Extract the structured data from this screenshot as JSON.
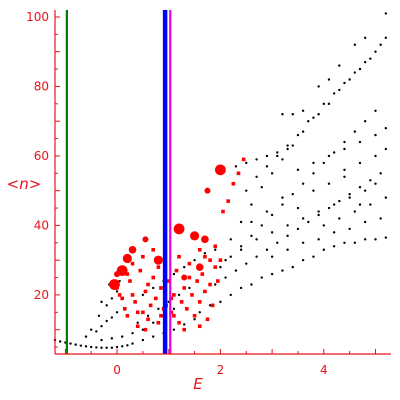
{
  "chart_data": {
    "type": "scatter",
    "xlabel": "E",
    "ylabel": "<n>",
    "xlim": [
      -1.2,
      5.3
    ],
    "ylim": [
      3,
      102
    ],
    "xticks": [
      0,
      2,
      4
    ],
    "yticks": [
      20,
      40,
      60,
      80,
      100
    ],
    "grid": false,
    "colors": {
      "axis": "#e8141c",
      "labels": "#e8141c",
      "black_points": "#000000",
      "red_points": "#ff0000",
      "vline_green": "#007a00",
      "vline_blue": "#0000ff",
      "vline_magenta": "#e000e0"
    },
    "vertical_lines": [
      {
        "color": "green",
        "x": -0.97
      },
      {
        "color": "blue",
        "x": 0.93
      },
      {
        "color": "magenta",
        "x": 1.03
      }
    ],
    "series": [
      {
        "marker": "dot",
        "color": "black",
        "points": [
          [
            -1.2,
            7.0
          ],
          [
            -1.1,
            6.6
          ],
          [
            -1.0,
            6.3
          ],
          [
            -0.9,
            6.0
          ],
          [
            -0.8,
            5.7
          ],
          [
            -0.7,
            5.4
          ],
          [
            -0.6,
            5.2
          ],
          [
            -0.5,
            5.0
          ],
          [
            -0.4,
            4.9
          ],
          [
            -0.3,
            4.8
          ],
          [
            -0.2,
            4.8
          ],
          [
            -0.1,
            4.8
          ],
          [
            0.0,
            5.0
          ],
          [
            0.1,
            5.2
          ],
          [
            0.2,
            5.5
          ],
          [
            -0.6,
            8.0
          ],
          [
            -0.4,
            9.5
          ],
          [
            -0.3,
            11.0
          ],
          [
            -0.2,
            12.5
          ],
          [
            -0.1,
            13.5
          ],
          [
            0.0,
            15.0
          ],
          [
            -0.5,
            10.0
          ],
          [
            -0.35,
            14.0
          ],
          [
            -0.2,
            17.0
          ],
          [
            -0.1,
            19.0
          ],
          [
            0.0,
            21.0
          ],
          [
            -0.3,
            18.0
          ],
          [
            0.05,
            24.0
          ],
          [
            0.15,
            26.0
          ],
          [
            -0.15,
            23.0
          ],
          [
            -0.3,
            7.0
          ],
          [
            -0.1,
            7.5
          ],
          [
            0.1,
            8.0
          ],
          [
            0.3,
            9.0
          ],
          [
            0.5,
            10.0
          ],
          [
            0.7,
            12.0
          ],
          [
            0.9,
            14.0
          ],
          [
            1.1,
            16.0
          ],
          [
            0.3,
            6.0
          ],
          [
            0.5,
            7.0
          ],
          [
            0.7,
            8.0
          ],
          [
            0.9,
            9.0
          ],
          [
            1.1,
            10.0
          ],
          [
            1.3,
            11.5
          ],
          [
            1.5,
            13.0
          ],
          [
            0.4,
            12.0
          ],
          [
            0.6,
            14.0
          ],
          [
            0.8,
            16.0
          ],
          [
            1.0,
            18.0
          ],
          [
            1.2,
            20.0
          ],
          [
            1.4,
            22.0
          ],
          [
            0.5,
            20.0
          ],
          [
            0.7,
            22.0
          ],
          [
            0.9,
            24.0
          ],
          [
            1.1,
            26.0
          ],
          [
            1.3,
            28.0
          ],
          [
            1.5,
            30.0
          ],
          [
            1.7,
            32.0
          ],
          [
            1.9,
            33.0
          ],
          [
            1.6,
            15.0
          ],
          [
            1.8,
            17.0
          ],
          [
            2.0,
            18.0
          ],
          [
            2.2,
            20.0
          ],
          [
            2.4,
            22.0
          ],
          [
            2.6,
            23.0
          ],
          [
            2.8,
            25.0
          ],
          [
            3.0,
            26.0
          ],
          [
            3.2,
            27.0
          ],
          [
            3.4,
            28.0
          ],
          [
            3.6,
            30.0
          ],
          [
            3.8,
            31.0
          ],
          [
            4.0,
            33.0
          ],
          [
            4.2,
            34.0
          ],
          [
            4.4,
            35.0
          ],
          [
            4.6,
            35.0
          ],
          [
            4.8,
            36.0
          ],
          [
            5.0,
            36.0
          ],
          [
            5.2,
            36.5
          ],
          [
            1.7,
            21.0
          ],
          [
            1.9,
            23.0
          ],
          [
            2.1,
            25.0
          ],
          [
            2.3,
            27.0
          ],
          [
            2.5,
            29.0
          ],
          [
            2.7,
            31.0
          ],
          [
            2.9,
            33.0
          ],
          [
            3.1,
            35.0
          ],
          [
            3.3,
            37.0
          ],
          [
            3.5,
            39.0
          ],
          [
            3.7,
            41.0
          ],
          [
            3.9,
            43.0
          ],
          [
            4.1,
            45.0
          ],
          [
            4.3,
            47.0
          ],
          [
            4.5,
            49.0
          ],
          [
            4.7,
            51.0
          ],
          [
            4.9,
            53.0
          ],
          [
            5.1,
            55.0
          ],
          [
            2.0,
            28.0
          ],
          [
            2.2,
            31.0
          ],
          [
            2.4,
            34.0
          ],
          [
            2.6,
            37.0
          ],
          [
            2.8,
            40.0
          ],
          [
            3.0,
            43.0
          ],
          [
            3.2,
            46.0
          ],
          [
            3.4,
            49.0
          ],
          [
            3.6,
            52.0
          ],
          [
            3.8,
            55.0
          ],
          [
            4.0,
            58.0
          ],
          [
            4.2,
            61.0
          ],
          [
            4.4,
            64.0
          ],
          [
            4.6,
            67.0
          ],
          [
            4.8,
            70.0
          ],
          [
            5.0,
            73.0
          ],
          [
            2.2,
            36.0
          ],
          [
            2.4,
            41.0
          ],
          [
            2.6,
            46.0
          ],
          [
            2.8,
            51.0
          ],
          [
            3.0,
            55.0
          ],
          [
            3.2,
            59.0
          ],
          [
            3.4,
            63.0
          ],
          [
            3.6,
            67.0
          ],
          [
            3.8,
            71.0
          ],
          [
            4.0,
            75.0
          ],
          [
            4.2,
            78.0
          ],
          [
            4.4,
            81.0
          ],
          [
            4.6,
            84.0
          ],
          [
            4.8,
            87.0
          ],
          [
            5.0,
            90.0
          ],
          [
            5.2,
            94.0
          ],
          [
            2.5,
            50.0
          ],
          [
            2.7,
            54.0
          ],
          [
            2.9,
            57.0
          ],
          [
            3.1,
            60.0
          ],
          [
            3.3,
            63.0
          ],
          [
            3.5,
            66.0
          ],
          [
            3.7,
            70.0
          ],
          [
            3.9,
            72.0
          ],
          [
            4.1,
            75.0
          ],
          [
            4.3,
            79.0
          ],
          [
            4.5,
            82.0
          ],
          [
            4.7,
            85.0
          ],
          [
            4.9,
            88.0
          ],
          [
            5.1,
            92.0
          ],
          [
            5.2,
            101.0
          ],
          [
            2.3,
            57.0
          ],
          [
            2.5,
            58.0
          ],
          [
            2.7,
            59.0
          ],
          [
            2.9,
            60.0
          ],
          [
            3.1,
            61.0
          ],
          [
            3.3,
            62.0
          ],
          [
            3.2,
            72.0
          ],
          [
            3.4,
            72.0
          ],
          [
            3.6,
            73.0
          ],
          [
            3.9,
            80.0
          ],
          [
            4.1,
            82.0
          ],
          [
            4.3,
            86.0
          ],
          [
            4.6,
            92.0
          ],
          [
            4.8,
            94.0
          ],
          [
            2.1,
            30.0
          ],
          [
            2.4,
            33.0
          ],
          [
            2.7,
            36.0
          ],
          [
            3.0,
            38.0
          ],
          [
            3.3,
            40.0
          ],
          [
            3.6,
            42.0
          ],
          [
            3.9,
            44.0
          ],
          [
            4.2,
            46.0
          ],
          [
            4.5,
            48.0
          ],
          [
            4.8,
            50.0
          ],
          [
            3.5,
            56.0
          ],
          [
            3.8,
            58.0
          ],
          [
            4.1,
            60.0
          ],
          [
            4.4,
            62.0
          ],
          [
            4.7,
            64.0
          ],
          [
            5.0,
            66.0
          ],
          [
            5.2,
            68.0
          ],
          [
            4.0,
            40.0
          ],
          [
            4.3,
            42.0
          ],
          [
            4.6,
            44.0
          ],
          [
            4.9,
            46.0
          ],
          [
            5.2,
            48.0
          ],
          [
            4.4,
            56.0
          ],
          [
            4.7,
            58.0
          ],
          [
            5.0,
            60.0
          ],
          [
            5.2,
            62.0
          ],
          [
            2.6,
            41.0
          ],
          [
            2.9,
            44.0
          ],
          [
            3.2,
            48.0
          ],
          [
            3.5,
            45.0
          ],
          [
            3.8,
            50.0
          ],
          [
            4.1,
            52.0
          ],
          [
            4.4,
            54.0
          ],
          [
            4.7,
            46.0
          ],
          [
            5.0,
            52.0
          ],
          [
            3.0,
            31.0
          ],
          [
            3.3,
            33.0
          ],
          [
            3.6,
            35.0
          ],
          [
            3.9,
            36.0
          ],
          [
            4.2,
            38.0
          ],
          [
            4.5,
            39.0
          ],
          [
            4.8,
            41.0
          ],
          [
            5.1,
            42.0
          ]
        ]
      },
      {
        "marker": "square",
        "color": "red",
        "points": [
          [
            0.0,
            22.0
          ],
          [
            0.1,
            19.0
          ],
          [
            0.15,
            16.0
          ],
          [
            0.2,
            14.0
          ],
          [
            0.25,
            24.0
          ],
          [
            0.3,
            20.0
          ],
          [
            0.35,
            18.0
          ],
          [
            0.4,
            11.0
          ],
          [
            0.45,
            27.0
          ],
          [
            0.5,
            15.0
          ],
          [
            0.55,
            21.0
          ],
          [
            0.6,
            13.0
          ],
          [
            0.65,
            17.0
          ],
          [
            0.7,
            25.0
          ],
          [
            0.75,
            19.0
          ],
          [
            0.8,
            12.0
          ],
          [
            0.85,
            22.0
          ],
          [
            0.9,
            16.0
          ],
          [
            1.0,
            24.0
          ],
          [
            1.05,
            15.0
          ],
          [
            1.1,
            20.0
          ],
          [
            1.15,
            27.0
          ],
          [
            1.2,
            12.0
          ],
          [
            1.25,
            18.0
          ],
          [
            1.3,
            22.0
          ],
          [
            1.35,
            16.0
          ],
          [
            1.4,
            29.0
          ],
          [
            1.45,
            20.0
          ],
          [
            1.5,
            14.0
          ],
          [
            1.55,
            24.0
          ],
          [
            1.6,
            18.0
          ],
          [
            1.65,
            26.0
          ],
          [
            1.7,
            21.0
          ],
          [
            1.75,
            13.0
          ],
          [
            1.8,
            23.0
          ],
          [
            1.85,
            17.0
          ],
          [
            1.9,
            28.0
          ],
          [
            1.95,
            24.0
          ],
          [
            2.0,
            30.0
          ],
          [
            0.3,
            29.0
          ],
          [
            0.5,
            31.0
          ],
          [
            0.7,
            33.0
          ],
          [
            0.6,
            23.0
          ],
          [
            0.8,
            28.0
          ],
          [
            1.2,
            31.0
          ],
          [
            1.4,
            25.0
          ],
          [
            1.6,
            33.0
          ],
          [
            1.8,
            30.0
          ],
          [
            0.4,
            15.0
          ],
          [
            0.55,
            10.0
          ],
          [
            1.1,
            14.0
          ],
          [
            1.3,
            10.0
          ],
          [
            0.95,
            17.0
          ],
          [
            1.05,
            19.0
          ],
          [
            1.6,
            11.0
          ],
          [
            0.85,
            14.0
          ],
          [
            0.2,
            26.0
          ],
          [
            0.05,
            20.0
          ],
          [
            1.7,
            31.0
          ],
          [
            1.9,
            34.0
          ],
          [
            2.05,
            44.0
          ],
          [
            2.15,
            47.0
          ],
          [
            2.25,
            52.0
          ],
          [
            2.35,
            55.0
          ],
          [
            2.45,
            59.0
          ]
        ]
      },
      {
        "marker": "large-dot",
        "color": "red",
        "points": [
          [
            0.0,
            26.0
          ],
          [
            -0.05,
            23.0
          ],
          [
            0.2,
            30.5
          ],
          [
            0.3,
            33.0
          ],
          [
            0.55,
            36.0
          ],
          [
            1.2,
            39.0
          ],
          [
            1.5,
            37.0
          ],
          [
            1.7,
            36.0
          ],
          [
            1.75,
            50.0
          ],
          [
            2.0,
            56.0
          ],
          [
            0.8,
            30.0
          ],
          [
            1.6,
            28.0
          ],
          [
            1.3,
            25.0
          ],
          [
            0.1,
            27.0
          ]
        ]
      }
    ]
  }
}
